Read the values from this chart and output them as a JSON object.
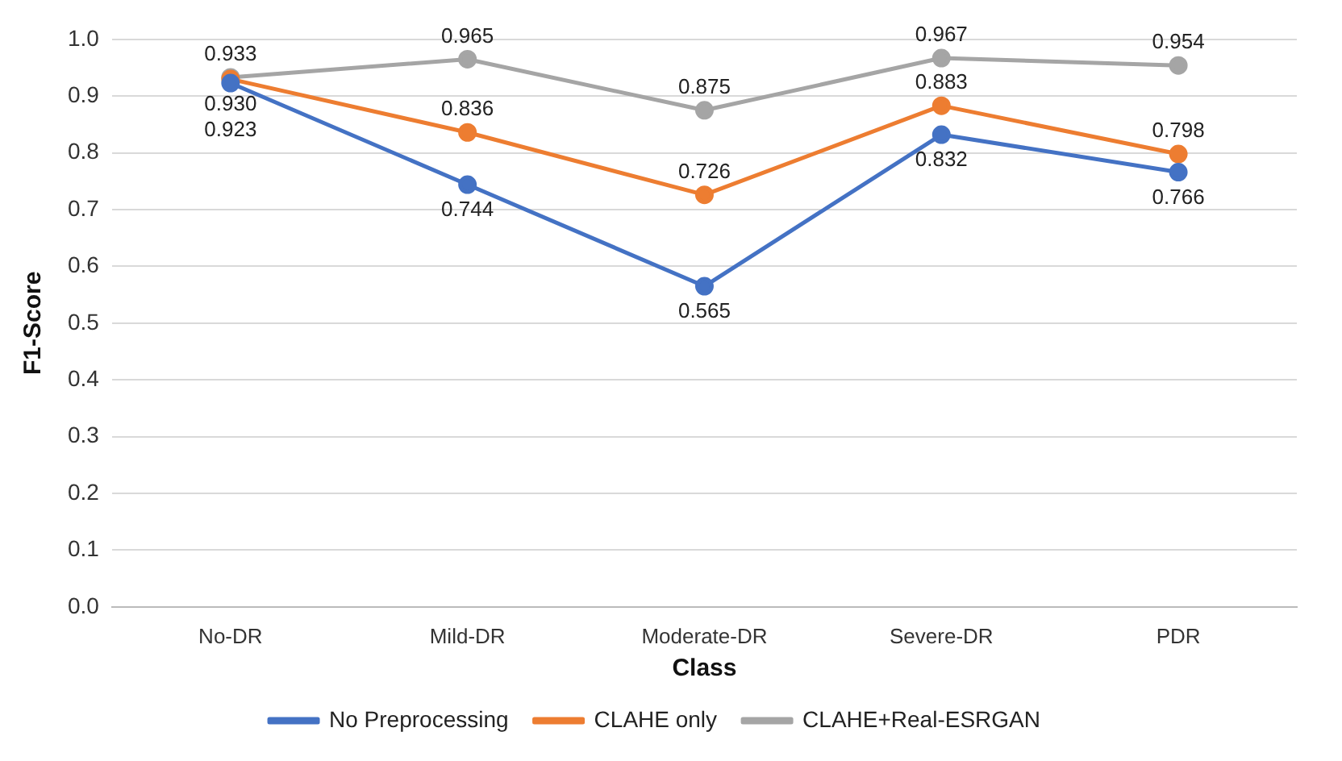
{
  "chart_data": {
    "type": "line",
    "xlabel": "Class",
    "ylabel": "F1-Score",
    "categories": [
      "No-DR",
      "Mild-DR",
      "Moderate-DR",
      "Severe-DR",
      "PDR"
    ],
    "series": [
      {
        "name": "No Preprocessing",
        "color": "#4472c4",
        "values": [
          0.923,
          0.744,
          0.565,
          0.832,
          0.766
        ],
        "value_labels": [
          "0.923",
          "0.744",
          "0.565",
          "0.832",
          "0.766"
        ]
      },
      {
        "name": "CLAHE only",
        "color": "#ed7d31",
        "values": [
          0.93,
          0.836,
          0.726,
          0.883,
          0.798
        ],
        "value_labels": [
          "0.930",
          "0.836",
          "0.726",
          "0.883",
          "0.798"
        ]
      },
      {
        "name": "CLAHE+Real-ESRGAN",
        "color": "#a5a5a5",
        "values": [
          0.933,
          0.965,
          0.875,
          0.967,
          0.954
        ],
        "value_labels": [
          "0.933",
          "0.965",
          "0.875",
          "0.967",
          "0.954"
        ]
      }
    ],
    "ylim": [
      0,
      1
    ],
    "yticks": [
      {
        "value": 0,
        "label": "0.0"
      },
      0.1,
      0.2,
      0.3,
      0.4,
      0.5,
      0.6,
      0.7,
      0.8,
      0.9,
      {
        "value": 1,
        "label": "1.0"
      }
    ],
    "grid": "y",
    "legend": "bottom",
    "marker": "circle",
    "line_style": "solid"
  }
}
